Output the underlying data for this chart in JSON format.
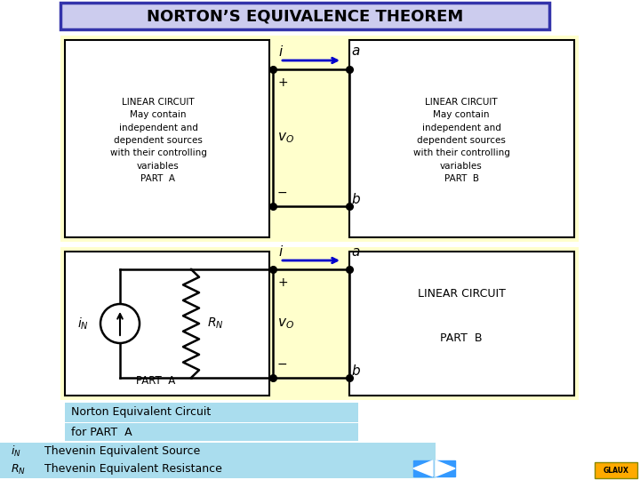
{
  "title": "NORTON’S EQUIVALENCE THEOREM",
  "title_bg": "#ccccee",
  "title_fg": "#000000",
  "title_border": "#3333aa",
  "page_bg": "#ffffff",
  "outer_bg": "#ffffcc",
  "yellow_color": "#ffffcc",
  "box_color": "#ffffff",
  "blue_light": "#aaddee",
  "arrow_color": "#0000cc",
  "nav_color": "#3399ff",
  "glaux_bg": "#ffaa00",
  "top_box_left_text": "LINEAR CIRCUIT\nMay contain\nindependent and\ndependent sources\nwith their controlling\nvariables\nPART  A",
  "top_box_right_text": "LINEAR CIRCUIT\nMay contain\nindependent and\ndependent sources\nwith their controlling\nvariables\nPART  B",
  "bottom_box_right_text": "LINEAR CIRCUIT\n\nPART  B",
  "bottom_left_label": "PART  A",
  "norton_text1": "Norton Equivalent Circuit",
  "norton_text2": "for PART  A",
  "legend1_text": "Thevenin Equivalent Source",
  "legend2_text": "Thevenin Equivalent Resistance"
}
